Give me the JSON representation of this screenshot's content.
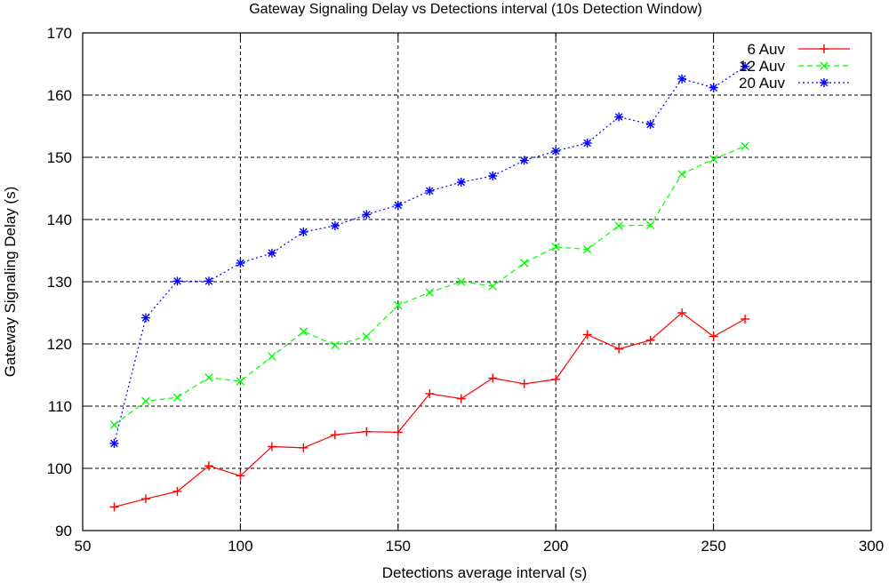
{
  "chart_data": {
    "type": "line",
    "title": "Gateway Signaling Delay vs Detections interval (10s Detection Window)",
    "xlabel": "Detections average interval (s)",
    "ylabel": "Gateway Signaling Delay (s)",
    "xlim": [
      50,
      300
    ],
    "ylim": [
      90,
      170
    ],
    "xticks": [
      50,
      100,
      150,
      200,
      250,
      300
    ],
    "yticks": [
      90,
      100,
      110,
      120,
      130,
      140,
      150,
      160,
      170
    ],
    "grid": true,
    "legend_position": "top-right",
    "x": [
      60,
      70,
      80,
      90,
      100,
      110,
      120,
      130,
      140,
      150,
      160,
      170,
      180,
      190,
      200,
      210,
      220,
      230,
      240,
      250,
      260
    ],
    "series": [
      {
        "name": "6 Auv",
        "color": "#ff0000",
        "line_style": "solid",
        "marker": "plus",
        "values": [
          93.8,
          95.1,
          96.3,
          100.4,
          98.8,
          103.5,
          103.3,
          105.4,
          105.9,
          105.8,
          112.0,
          111.2,
          114.5,
          113.6,
          114.3,
          121.5,
          119.2,
          120.6,
          125.0,
          121.2,
          124.0
        ]
      },
      {
        "name": "12 Auv",
        "color": "#00ff00",
        "line_style": "dashed",
        "marker": "x",
        "values": [
          107.0,
          110.8,
          111.4,
          114.6,
          114.0,
          118.0,
          122.0,
          119.8,
          121.2,
          126.2,
          128.3,
          130.0,
          129.3,
          133.0,
          135.6,
          135.2,
          139.0,
          139.1,
          147.3,
          149.7,
          151.8
        ]
      },
      {
        "name": "20 Auv",
        "color": "#0000ff",
        "line_style": "dotted",
        "marker": "star",
        "values": [
          104.0,
          124.2,
          130.1,
          130.1,
          133.0,
          134.6,
          138.0,
          139.0,
          140.8,
          142.3,
          144.6,
          146.0,
          147.0,
          149.5,
          151.0,
          152.3,
          156.5,
          155.3,
          162.6,
          161.2,
          164.6
        ]
      }
    ]
  }
}
